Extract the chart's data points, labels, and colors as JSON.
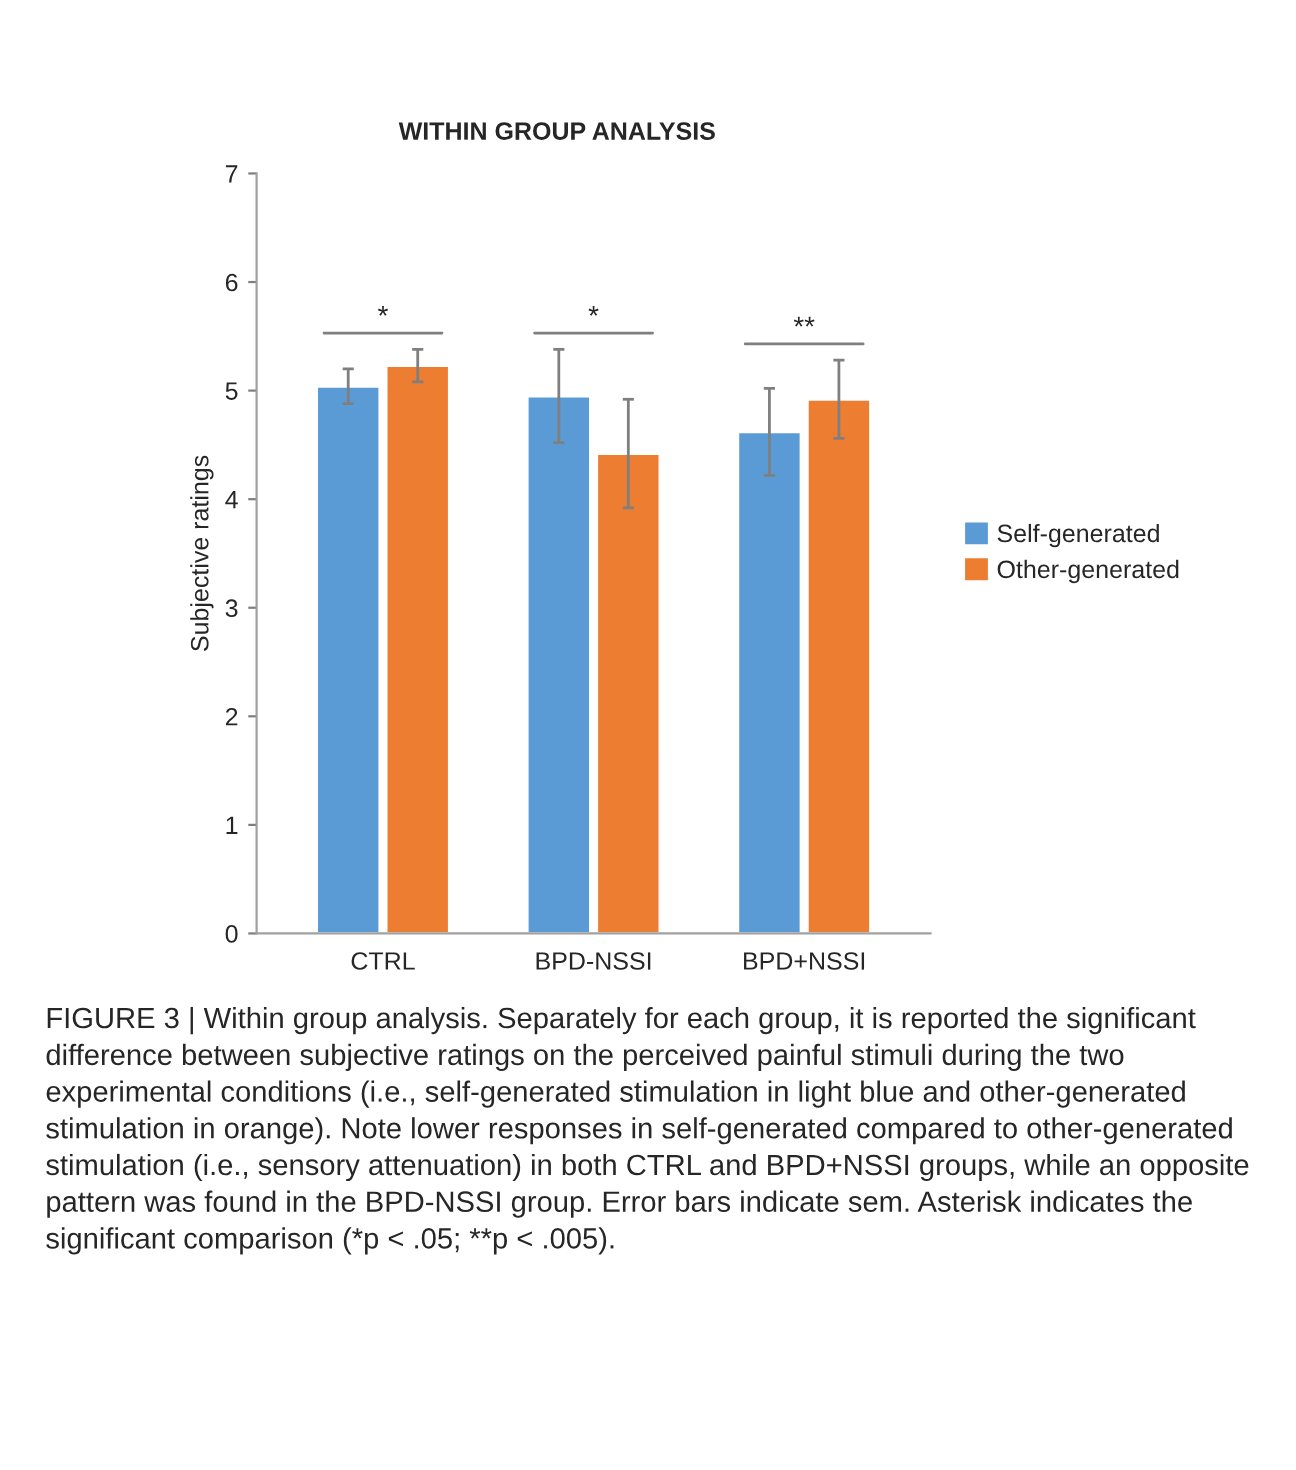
{
  "chart_data": {
    "type": "bar",
    "title": "WITHIN GROUP ANALYSIS",
    "ylabel": "Subjective ratings",
    "categories": [
      "CTRL",
      "BPD-NSSI",
      "BPD+NSSI"
    ],
    "series": [
      {
        "name": "Self-generated",
        "color": "#5b9bd5",
        "values": [
          5.04,
          4.95,
          4.62
        ],
        "errors": [
          0.16,
          0.43,
          0.4
        ]
      },
      {
        "name": "Other-generated",
        "color": "#ed7d31",
        "values": [
          5.23,
          4.42,
          4.92
        ],
        "errors": [
          0.15,
          0.5,
          0.36
        ]
      }
    ],
    "ylim": [
      0,
      7
    ],
    "yticks": [
      0,
      1,
      2,
      3,
      4,
      5,
      6,
      7
    ],
    "grid": false,
    "legend": "right",
    "annotations": [
      "*",
      "*",
      "**",
      "FIGURE 3 | Within group analysis. Separately for each group, it is reported the significant difference between subjective ratings on the perceived painful stimuli during the two experimental conditions (i.e., self-generated stimulation in light blue and other-generated stimulation in orange). Note lower responses in self-generated compared to other-generated stimulation (i.e., sensory attenuation) in both CTRL and BPD+NSSI groups, while an opposite pattern was found in the BPD-NSSI group. Error bars indicate sem. Asterisk indicates the significant comparison (*p < .05; **p < .005)."
    ]
  }
}
